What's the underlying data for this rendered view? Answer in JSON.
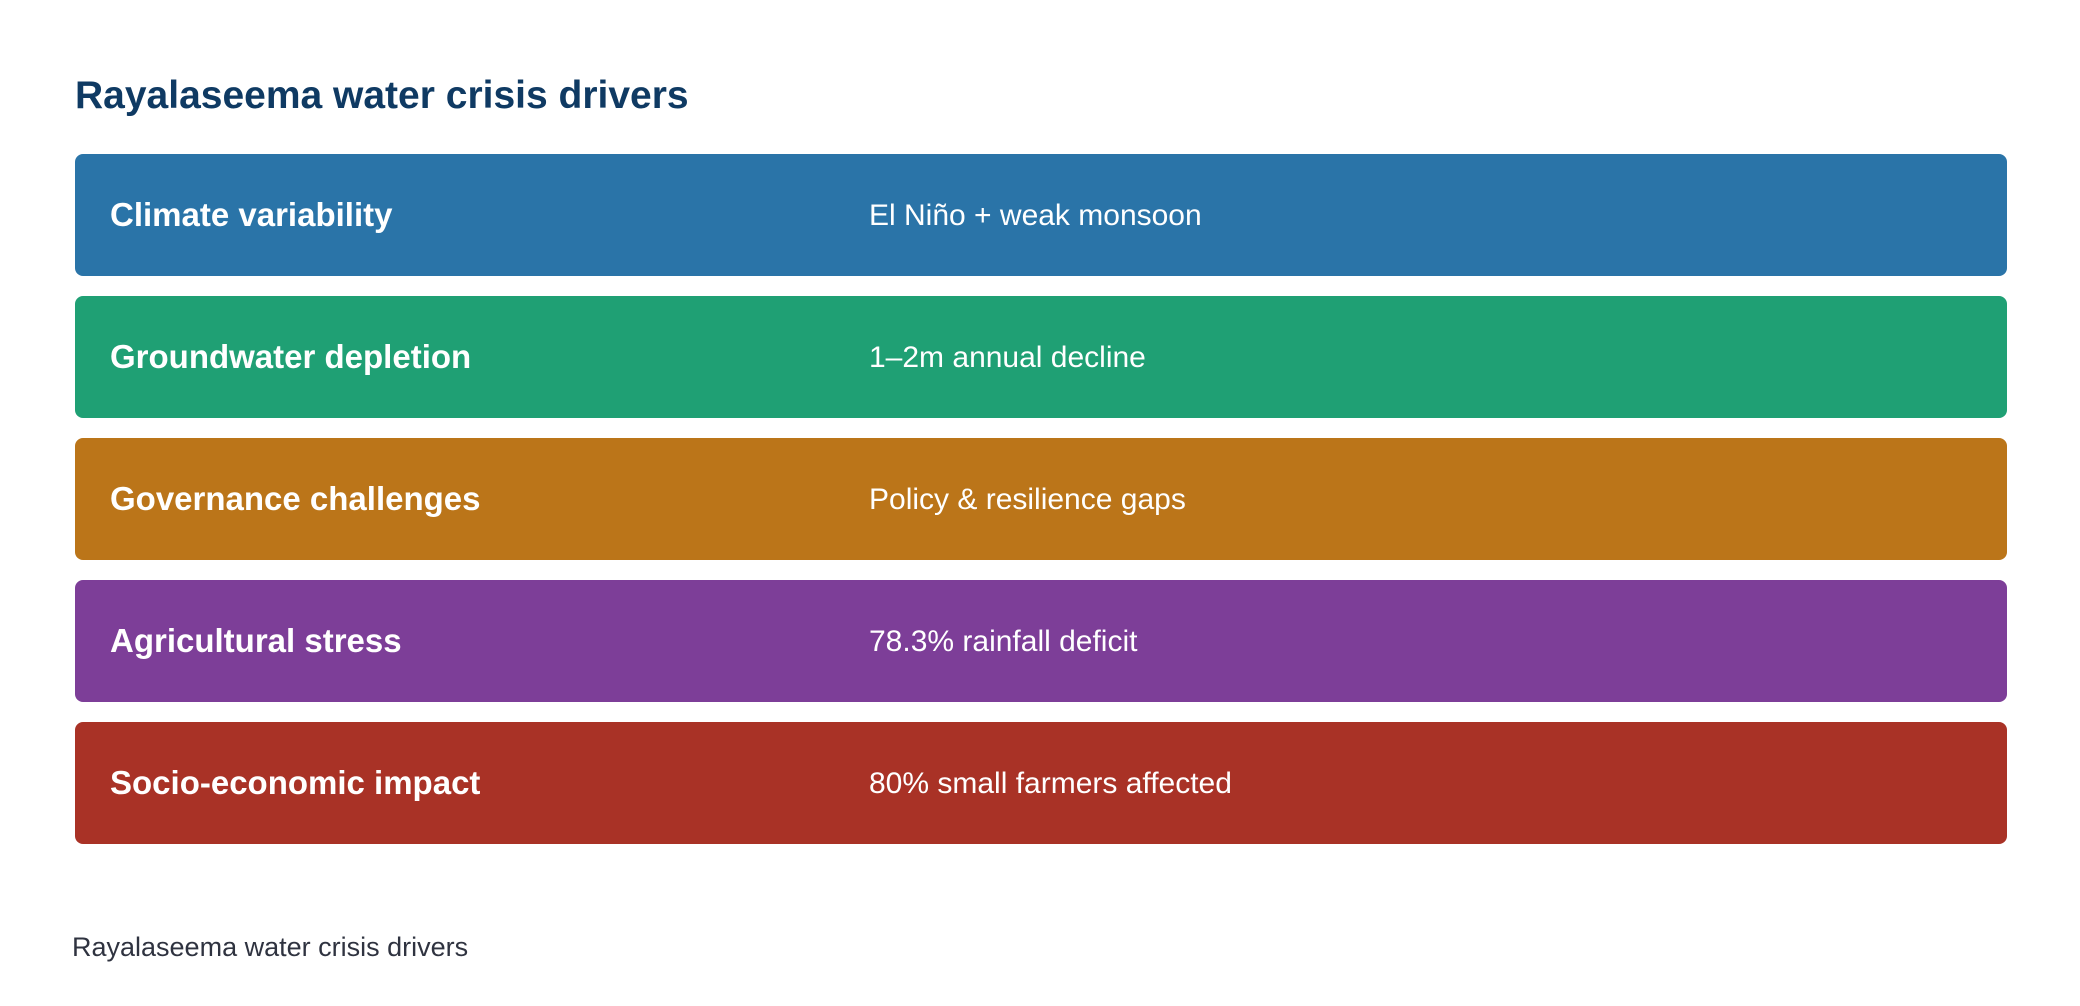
{
  "title": "Rayalaseema water crisis drivers",
  "rows": [
    {
      "driver": "Climate variability",
      "detail": "El Niño + weak monsoon",
      "color": "#2a74a8"
    },
    {
      "driver": "Groundwater depletion",
      "detail": "1–2m annual decline",
      "color": "#1fa074"
    },
    {
      "driver": "Governance challenges",
      "detail": "Policy & resilience gaps",
      "color": "#bb7519"
    },
    {
      "driver": "Agricultural stress",
      "detail": "78.3% rainfall deficit",
      "color": "#7d3e98"
    },
    {
      "driver": "Socio-economic impact",
      "detail": "80% small farmers affected",
      "color": "#a93226"
    }
  ],
  "caption": "Rayalaseema water crisis drivers"
}
